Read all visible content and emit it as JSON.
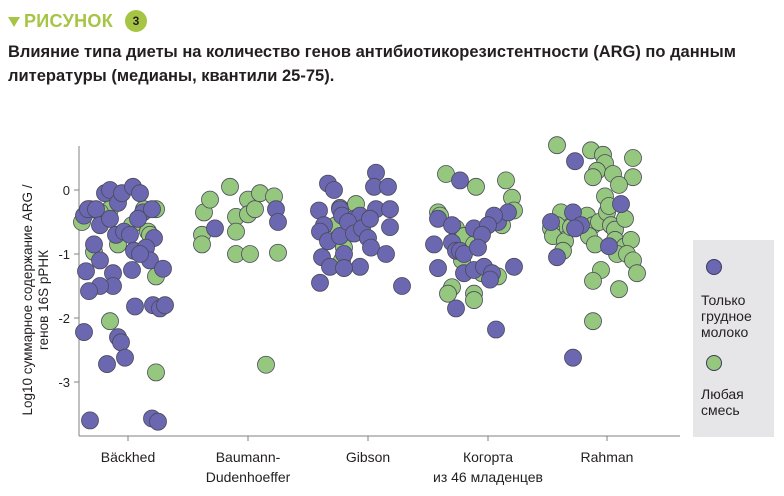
{
  "figure": {
    "label": "РИСУНОК",
    "number": "3",
    "title": "Влияние типа диеты на количество генов антибиотикорезистентности (ARG) по данным литературы (медианы, квантили 25-75)."
  },
  "legend": {
    "items": [
      {
        "label": "Только\nгрудное\nмолоко",
        "color": "#6b67b0"
      },
      {
        "label": "Любая\nсмесь",
        "color": "#95c77e"
      }
    ]
  },
  "colors": {
    "breastmilk": "#6b67b0",
    "formula": "#95c77e",
    "accent": "#a6c544",
    "axis": "#808080",
    "legend_bg": "#e6e5e8"
  },
  "chart_data": {
    "type": "scatter",
    "title": "Влияние типа диеты на количество генов антибиотикорезистентности (ARG) по данным литературы (медианы, квантили 25-75).",
    "xlabel": "",
    "ylabel": "Log10 суммарное содержание ARG / генов 16S рРНК",
    "ylim": [
      -3.75,
      0.7
    ],
    "yticks": [
      0,
      -1,
      -2,
      -3
    ],
    "grid": false,
    "legend_position": "right",
    "categories": [
      "Bäckhed",
      "Baumann-\nDudenhoeffer",
      "Gibson",
      "Когорта\nиз 46 младенцев",
      "Rahman"
    ],
    "series": [
      {
        "name": "Только грудное молоко",
        "color": "#6b67b0",
        "points": [
          {
            "c": 0,
            "dx": -24,
            "y": -0.4
          },
          {
            "c": 0,
            "dx": -20,
            "y": -0.3
          },
          {
            "c": 0,
            "dx": -12,
            "y": -0.3
          },
          {
            "c": 0,
            "dx": -3,
            "y": -0.05
          },
          {
            "c": 0,
            "dx": 2,
            "y": 0.0
          },
          {
            "c": 0,
            "dx": 10,
            "y": -0.2
          },
          {
            "c": 0,
            "dx": 14,
            "y": -0.05
          },
          {
            "c": 0,
            "dx": 25,
            "y": 0.05
          },
          {
            "c": 0,
            "dx": 32,
            "y": -0.05
          },
          {
            "c": 0,
            "dx": 35,
            "y": -0.35
          },
          {
            "c": 0,
            "dx": 44,
            "y": -0.3
          },
          {
            "c": 0,
            "dx": -8,
            "y": -0.55
          },
          {
            "c": 0,
            "dx": 2,
            "y": -0.45
          },
          {
            "c": 0,
            "dx": 8,
            "y": -0.7
          },
          {
            "c": 0,
            "dx": 16,
            "y": -0.65
          },
          {
            "c": 0,
            "dx": 30,
            "y": -0.45
          },
          {
            "c": 0,
            "dx": 46,
            "y": -0.75
          },
          {
            "c": 0,
            "dx": -14,
            "y": -0.85
          },
          {
            "c": 0,
            "dx": -8,
            "y": -1.1
          },
          {
            "c": 0,
            "dx": 22,
            "y": -0.7
          },
          {
            "c": 0,
            "dx": 26,
            "y": -0.95
          },
          {
            "c": 0,
            "dx": 38,
            "y": -0.9
          },
          {
            "c": 0,
            "dx": 42,
            "y": -1.1
          },
          {
            "c": 0,
            "dx": 32,
            "y": -1.0
          },
          {
            "c": 0,
            "dx": -22,
            "y": -1.27
          },
          {
            "c": 0,
            "dx": 5,
            "y": -1.3
          },
          {
            "c": 0,
            "dx": 5,
            "y": -1.5
          },
          {
            "c": 0,
            "dx": -8,
            "y": -1.5
          },
          {
            "c": 0,
            "dx": 24,
            "y": -1.25
          },
          {
            "c": 0,
            "dx": 55,
            "y": -1.23
          },
          {
            "c": 0,
            "dx": -19,
            "y": -1.58
          },
          {
            "c": 0,
            "dx": 27,
            "y": -1.82
          },
          {
            "c": 0,
            "dx": 45,
            "y": -1.8
          },
          {
            "c": 0,
            "dx": 52,
            "y": -1.85
          },
          {
            "c": 0,
            "dx": 57,
            "y": -1.8
          },
          {
            "c": 0,
            "dx": -24,
            "y": -2.22
          },
          {
            "c": 0,
            "dx": 10,
            "y": -2.3
          },
          {
            "c": 0,
            "dx": 13,
            "y": -2.38
          },
          {
            "c": 0,
            "dx": 17,
            "y": -2.62
          },
          {
            "c": 0,
            "dx": -1,
            "y": -2.72
          },
          {
            "c": 0,
            "dx": -18,
            "y": -3.6
          },
          {
            "c": 0,
            "dx": 44,
            "y": -3.57
          },
          {
            "c": 0,
            "dx": 50,
            "y": -3.62
          },
          {
            "c": 1,
            "dx": -13,
            "y": -0.6
          },
          {
            "c": 1,
            "dx": 48,
            "y": -0.3
          },
          {
            "c": 1,
            "dx": 50,
            "y": -0.5
          },
          {
            "c": 2,
            "dx": -29,
            "y": -0.32
          },
          {
            "c": 2,
            "dx": -20,
            "y": 0.1
          },
          {
            "c": 2,
            "dx": -14,
            "y": 0.0
          },
          {
            "c": 2,
            "dx": -8,
            "y": -0.3
          },
          {
            "c": 2,
            "dx": -24,
            "y": -0.55
          },
          {
            "c": 2,
            "dx": -28,
            "y": -0.65
          },
          {
            "c": 2,
            "dx": -20,
            "y": -0.8
          },
          {
            "c": 2,
            "dx": -6,
            "y": -0.4
          },
          {
            "c": 2,
            "dx": 6,
            "y": -0.45
          },
          {
            "c": 2,
            "dx": 12,
            "y": -0.4
          },
          {
            "c": 2,
            "dx": -8,
            "y": -0.72
          },
          {
            "c": 2,
            "dx": 0,
            "y": -0.5
          },
          {
            "c": 2,
            "dx": 6,
            "y": -0.68
          },
          {
            "c": 2,
            "dx": 14,
            "y": -0.6
          },
          {
            "c": 2,
            "dx": 20,
            "y": -0.75
          },
          {
            "c": 2,
            "dx": 23,
            "y": -0.9
          },
          {
            "c": 2,
            "dx": 28,
            "y": 0.27
          },
          {
            "c": 2,
            "dx": 26,
            "y": 0.05
          },
          {
            "c": 2,
            "dx": 40,
            "y": 0.05
          },
          {
            "c": 2,
            "dx": 28,
            "y": -0.3
          },
          {
            "c": 2,
            "dx": 42,
            "y": -0.3
          },
          {
            "c": 2,
            "dx": 42,
            "y": -0.58
          },
          {
            "c": 2,
            "dx": 22,
            "y": -0.45
          },
          {
            "c": 2,
            "dx": -26,
            "y": -1.05
          },
          {
            "c": 2,
            "dx": -18,
            "y": -1.2
          },
          {
            "c": 2,
            "dx": -4,
            "y": -1.0
          },
          {
            "c": 2,
            "dx": 12,
            "y": -1.2
          },
          {
            "c": 2,
            "dx": -28,
            "y": -1.45
          },
          {
            "c": 2,
            "dx": 38,
            "y": -1.0
          },
          {
            "c": 2,
            "dx": 54,
            "y": -1.5
          },
          {
            "c": 2,
            "dx": -4,
            "y": -1.22
          },
          {
            "c": 3,
            "dx": -8,
            "y": 0.15
          },
          {
            "c": 3,
            "dx": -30,
            "y": -0.45
          },
          {
            "c": 3,
            "dx": -34,
            "y": -0.85
          },
          {
            "c": 3,
            "dx": -16,
            "y": -0.55
          },
          {
            "c": 3,
            "dx": -16,
            "y": -0.82
          },
          {
            "c": 3,
            "dx": -12,
            "y": -0.95
          },
          {
            "c": 3,
            "dx": -8,
            "y": -0.95
          },
          {
            "c": 3,
            "dx": 6,
            "y": -0.6
          },
          {
            "c": 3,
            "dx": -30,
            "y": -1.22
          },
          {
            "c": 3,
            "dx": -4,
            "y": -1.0
          },
          {
            "c": 3,
            "dx": 30,
            "y": -0.5
          },
          {
            "c": 3,
            "dx": 40,
            "y": -0.35
          },
          {
            "c": 3,
            "dx": 26,
            "y": -0.4
          },
          {
            "c": 3,
            "dx": 20,
            "y": -0.55
          },
          {
            "c": 3,
            "dx": 14,
            "y": -0.7
          },
          {
            "c": 3,
            "dx": 10,
            "y": -0.9
          },
          {
            "c": 3,
            "dx": -4,
            "y": -1.3
          },
          {
            "c": 3,
            "dx": 6,
            "y": -1.25
          },
          {
            "c": 3,
            "dx": 16,
            "y": -1.2
          },
          {
            "c": 3,
            "dx": 24,
            "y": -1.3
          },
          {
            "c": 3,
            "dx": 22,
            "y": -1.4
          },
          {
            "c": 3,
            "dx": 46,
            "y": -1.2
          },
          {
            "c": 3,
            "dx": -12,
            "y": -1.85
          },
          {
            "c": 3,
            "dx": 28,
            "y": -2.18
          },
          {
            "c": 4,
            "dx": -12,
            "y": 0.45
          },
          {
            "c": 4,
            "dx": -14,
            "y": -0.35
          },
          {
            "c": 4,
            "dx": -6,
            "y": -0.55
          },
          {
            "c": 4,
            "dx": -12,
            "y": -0.6
          },
          {
            "c": 4,
            "dx": -36,
            "y": -0.5
          },
          {
            "c": 4,
            "dx": -30,
            "y": -1.05
          },
          {
            "c": 4,
            "dx": 34,
            "y": -0.22
          },
          {
            "c": 4,
            "dx": 22,
            "y": -0.88
          },
          {
            "c": 4,
            "dx": -14,
            "y": -2.62
          }
        ]
      },
      {
        "name": "Любая смесь",
        "color": "#95c77e",
        "points": [
          {
            "c": 0,
            "dx": -26,
            "y": -0.5
          },
          {
            "c": 0,
            "dx": -18,
            "y": -0.3
          },
          {
            "c": 0,
            "dx": 2,
            "y": -0.3
          },
          {
            "c": 0,
            "dx": 36,
            "y": -0.3
          },
          {
            "c": 0,
            "dx": 48,
            "y": -0.3
          },
          {
            "c": 0,
            "dx": 24,
            "y": -0.55
          },
          {
            "c": 0,
            "dx": 10,
            "y": -0.85
          },
          {
            "c": 0,
            "dx": 40,
            "y": -0.65
          },
          {
            "c": 0,
            "dx": 42,
            "y": -0.7
          },
          {
            "c": 0,
            "dx": -14,
            "y": -0.97
          },
          {
            "c": 0,
            "dx": 48,
            "y": -1.35
          },
          {
            "c": 0,
            "dx": 2,
            "y": -2.05
          },
          {
            "c": 0,
            "dx": 48,
            "y": -2.85
          },
          {
            "c": 0,
            "dx": -8,
            "y": -0.35
          },
          {
            "c": 1,
            "dx": -24,
            "y": -0.35
          },
          {
            "c": 1,
            "dx": -18,
            "y": -0.15
          },
          {
            "c": 1,
            "dx": -26,
            "y": -0.7
          },
          {
            "c": 1,
            "dx": -26,
            "y": -0.85
          },
          {
            "c": 1,
            "dx": 2,
            "y": 0.05
          },
          {
            "c": 1,
            "dx": 8,
            "y": -0.42
          },
          {
            "c": 1,
            "dx": 8,
            "y": -0.65
          },
          {
            "c": 1,
            "dx": 20,
            "y": -0.15
          },
          {
            "c": 1,
            "dx": 20,
            "y": -0.38
          },
          {
            "c": 1,
            "dx": 27,
            "y": -0.3
          },
          {
            "c": 1,
            "dx": 32,
            "y": -0.05
          },
          {
            "c": 1,
            "dx": 46,
            "y": -0.1
          },
          {
            "c": 1,
            "dx": 8,
            "y": -1.0
          },
          {
            "c": 1,
            "dx": 22,
            "y": -1.0
          },
          {
            "c": 1,
            "dx": 50,
            "y": -0.98
          },
          {
            "c": 1,
            "dx": 38,
            "y": -2.73
          },
          {
            "c": 2,
            "dx": -8,
            "y": -0.28
          },
          {
            "c": 2,
            "dx": 8,
            "y": -0.22
          },
          {
            "c": 2,
            "dx": -12,
            "y": -0.55
          },
          {
            "c": 2,
            "dx": -4,
            "y": -0.9
          },
          {
            "c": 2,
            "dx": -6,
            "y": -1.1
          },
          {
            "c": 3,
            "dx": -22,
            "y": 0.25
          },
          {
            "c": 3,
            "dx": -30,
            "y": -0.35
          },
          {
            "c": 3,
            "dx": -28,
            "y": -0.4
          },
          {
            "c": 3,
            "dx": -12,
            "y": -0.6
          },
          {
            "c": 3,
            "dx": -8,
            "y": -0.78
          },
          {
            "c": 3,
            "dx": -4,
            "y": -0.72
          },
          {
            "c": 3,
            "dx": 8,
            "y": 0.05
          },
          {
            "c": 3,
            "dx": 38,
            "y": 0.15
          },
          {
            "c": 3,
            "dx": 44,
            "y": -0.12
          },
          {
            "c": 3,
            "dx": 46,
            "y": -0.32
          },
          {
            "c": 3,
            "dx": 34,
            "y": -0.55
          },
          {
            "c": 3,
            "dx": -6,
            "y": -1.1
          },
          {
            "c": 3,
            "dx": 6,
            "y": -0.85
          },
          {
            "c": 3,
            "dx": 30,
            "y": -1.35
          },
          {
            "c": 3,
            "dx": 14,
            "y": -1.3
          },
          {
            "c": 3,
            "dx": -16,
            "y": -1.52
          },
          {
            "c": 3,
            "dx": -20,
            "y": -1.62
          },
          {
            "c": 3,
            "dx": 6,
            "y": -1.62
          },
          {
            "c": 3,
            "dx": 6,
            "y": -1.72
          }
        ]
      }
    ],
    "series_rahman_formula": [
      {
        "c": 4,
        "dx": -30,
        "y": 0.7
      },
      {
        "c": 4,
        "dx": 4,
        "y": 0.62
      },
      {
        "c": 4,
        "dx": 16,
        "y": 0.55
      },
      {
        "c": 4,
        "dx": 46,
        "y": 0.5
      },
      {
        "c": 4,
        "dx": 18,
        "y": 0.42
      },
      {
        "c": 4,
        "dx": 10,
        "y": 0.3
      },
      {
        "c": 4,
        "dx": 6,
        "y": 0.2
      },
      {
        "c": 4,
        "dx": 26,
        "y": 0.25
      },
      {
        "c": 4,
        "dx": 46,
        "y": 0.2
      },
      {
        "c": 4,
        "dx": 32,
        "y": 0.08
      },
      {
        "c": 4,
        "dx": 18,
        "y": -0.1
      },
      {
        "c": 4,
        "dx": -26,
        "y": -0.35
      },
      {
        "c": 4,
        "dx": -30,
        "y": -0.55
      },
      {
        "c": 4,
        "dx": -36,
        "y": -0.6
      },
      {
        "c": 4,
        "dx": -34,
        "y": -0.72
      },
      {
        "c": 4,
        "dx": -22,
        "y": -0.8
      },
      {
        "c": 4,
        "dx": -24,
        "y": -0.95
      },
      {
        "c": 4,
        "dx": -16,
        "y": -0.58
      },
      {
        "c": 4,
        "dx": 0,
        "y": -0.4
      },
      {
        "c": 4,
        "dx": 6,
        "y": -0.55
      },
      {
        "c": 4,
        "dx": 2,
        "y": -0.72
      },
      {
        "c": 4,
        "dx": 12,
        "y": -0.5
      },
      {
        "c": 4,
        "dx": 20,
        "y": -0.35
      },
      {
        "c": 4,
        "dx": 24,
        "y": -0.55
      },
      {
        "c": 4,
        "dx": 28,
        "y": -0.62
      },
      {
        "c": 4,
        "dx": 38,
        "y": -0.45
      },
      {
        "c": 4,
        "dx": 8,
        "y": -0.85
      },
      {
        "c": 4,
        "dx": 28,
        "y": -0.78
      },
      {
        "c": 4,
        "dx": 38,
        "y": -0.88
      },
      {
        "c": 4,
        "dx": 44,
        "y": -0.78
      },
      {
        "c": 4,
        "dx": 22,
        "y": -0.25
      },
      {
        "c": 4,
        "dx": 30,
        "y": -1.0
      },
      {
        "c": 4,
        "dx": 40,
        "y": -1.0
      },
      {
        "c": 4,
        "dx": 46,
        "y": -1.1
      },
      {
        "c": 4,
        "dx": 50,
        "y": -1.3
      },
      {
        "c": 4,
        "dx": 14,
        "y": -1.25
      },
      {
        "c": 4,
        "dx": 6,
        "y": -1.42
      },
      {
        "c": 4,
        "dx": 32,
        "y": -1.55
      },
      {
        "c": 4,
        "dx": 6,
        "y": -2.05
      }
    ]
  },
  "axis": {
    "ylabel_line1": "Log10 суммарное содержание ARG /",
    "ylabel_line2": "генов 16S рРНК",
    "yticks": [
      "0",
      "-1",
      "-2",
      "-3"
    ],
    "xticks": [
      {
        "line1": "Bäckhed",
        "line2": ""
      },
      {
        "line1": "Baumann-",
        "line2": "Dudenhoeffer"
      },
      {
        "line1": "Gibson",
        "line2": ""
      },
      {
        "line1": "Когорта",
        "line2": "из 46 младенцев"
      },
      {
        "line1": "Rahman",
        "line2": ""
      }
    ]
  }
}
